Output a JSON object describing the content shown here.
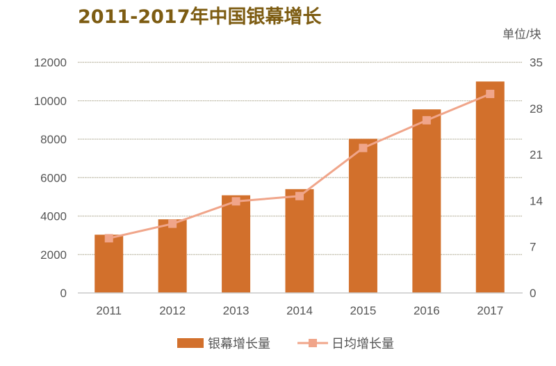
{
  "chart_data": {
    "type": "bar",
    "title": "2011-2017年中国银幕增长",
    "categories": [
      "2011",
      "2012",
      "2013",
      "2014",
      "2015",
      "2016",
      "2017"
    ],
    "series": [
      {
        "name": "银幕增长量",
        "type": "bar",
        "axis": "left",
        "color": "#d2702c",
        "values": [
          3030,
          3830,
          5080,
          5400,
          8020,
          9550,
          11000
        ]
      },
      {
        "name": "日均增长量",
        "type": "line",
        "axis": "right",
        "color": "#f0a58a",
        "values": [
          8.3,
          10.5,
          13.9,
          14.7,
          22.0,
          26.2,
          30.2
        ]
      }
    ],
    "left_axis": {
      "ylim": [
        0,
        12000
      ],
      "ticks": [
        "0",
        "2000",
        "4000",
        "6000",
        "8000",
        "10000",
        "12000"
      ]
    },
    "right_axis": {
      "ylim": [
        0,
        35
      ],
      "ticks": [
        "0",
        "7",
        "14",
        "21",
        "28",
        "35"
      ],
      "unit_label": "单位/块"
    },
    "grid": true,
    "legend": "bottom-center"
  }
}
